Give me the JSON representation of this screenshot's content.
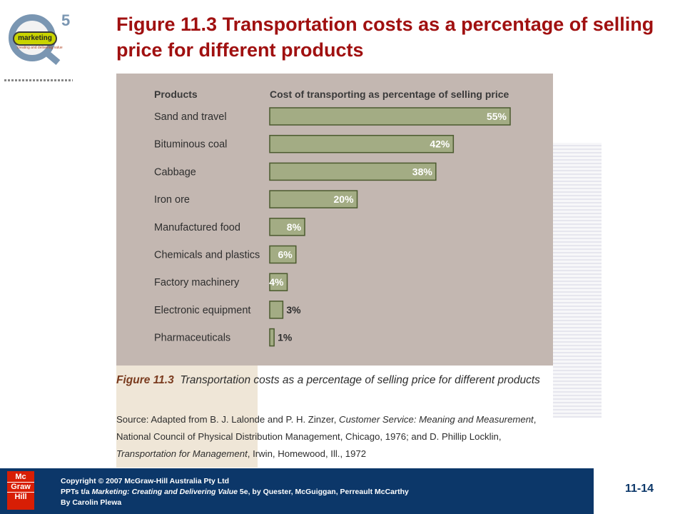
{
  "logo": {
    "brand_text": "marketing",
    "edition": "5",
    "subtitle": "creating and delivering value"
  },
  "slide_title": "Figure 11.3 Transportation costs as a percentage of selling price for different products",
  "chart_data": {
    "type": "bar",
    "orientation": "horizontal",
    "column_headers": [
      "Products",
      "Cost of transporting as percentage of selling price"
    ],
    "categories": [
      "Sand and travel",
      "Bituminous coal",
      "Cabbage",
      "Iron ore",
      "Manufactured food",
      "Chemicals and plastics",
      "Factory machinery",
      "Electronic equipment",
      "Pharmaceuticals"
    ],
    "values": [
      55,
      42,
      38,
      20,
      8,
      6,
      4,
      3,
      1
    ],
    "value_labels": [
      "55%",
      "42%",
      "38%",
      "20%",
      "8%",
      "6%",
      "4%",
      "3%",
      "1%"
    ],
    "xlim": [
      0,
      55
    ],
    "grid": false,
    "colors": {
      "bar": "#a3ac84",
      "bar_border": "#4b5a2e",
      "background": "#c3b7b1",
      "label": "#ffffff",
      "outside_label": "#2e2e2e"
    }
  },
  "caption": {
    "figure_label": "Figure 11.3",
    "title": "Transportation costs as a percentage of selling price for different products",
    "source_prefix": "Source: Adapted from B. J. Lalonde and P. H. Zinzer, ",
    "source_book1": "Customer Service: Meaning and Measurement",
    "source_mid": ", National Council of Physical Distribution Management, Chicago, 1976; and D. Phillip Locklin, ",
    "source_book2": "Transportation for Management",
    "source_end": ", Irwin, Homewood, Ill., 1972"
  },
  "footer": {
    "publisher_logo": [
      "Mc",
      "Graw",
      "Hill"
    ],
    "copyright": "Copyright © 2007 McGraw-Hill Australia Pty Ltd",
    "ppt_prefix": "PPTs t/a ",
    "book_title": "Marketing: Creating and Delivering Value",
    "ppt_suffix": " 5e, by Quester, McGuiggan, Perreault McCarthy",
    "author": "By Carolin Plewa",
    "slide_number": "11-14"
  }
}
